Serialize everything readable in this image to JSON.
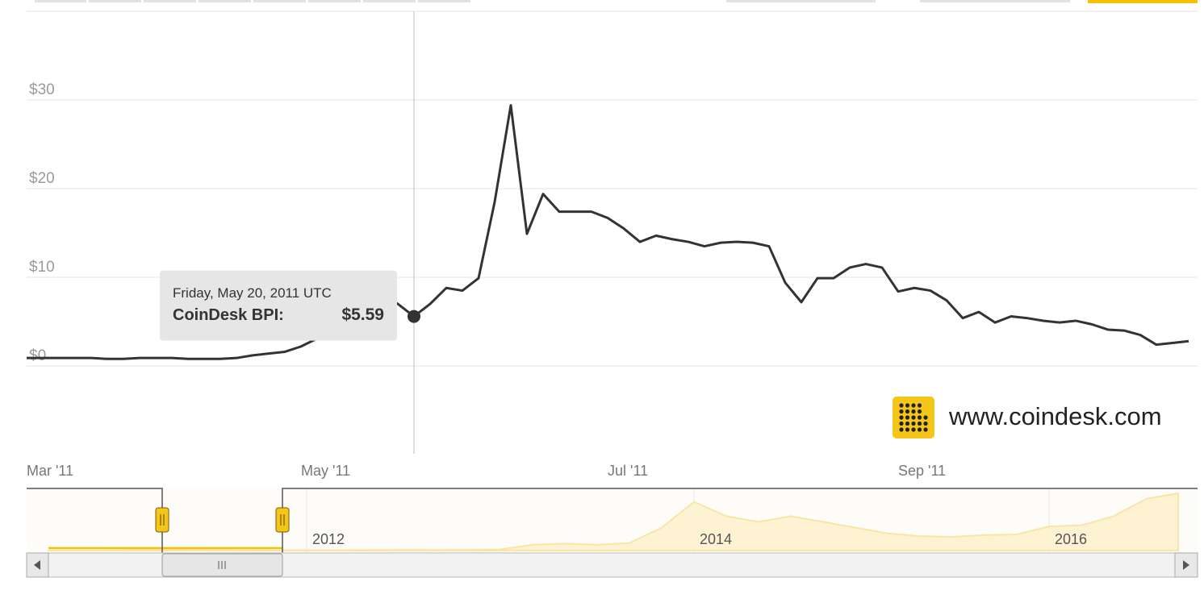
{
  "chart_data": [
    {
      "type": "line",
      "categories": [
        "Mar '11",
        null,
        null,
        null,
        null,
        null,
        null,
        null,
        null,
        null,
        null,
        null,
        null,
        null,
        null,
        null,
        null,
        "May '11",
        null,
        null,
        null,
        null,
        null,
        null,
        null,
        null,
        null,
        null,
        null,
        null,
        null,
        null,
        null,
        null,
        null,
        null,
        "Jul '11",
        null,
        null,
        null,
        null,
        null,
        null,
        null,
        null,
        null,
        null,
        null,
        null,
        null,
        null,
        null,
        null,
        null,
        "Sep '11",
        null,
        null,
        null,
        null,
        null,
        null,
        null,
        null,
        null,
        null,
        null,
        null,
        null,
        null,
        null,
        null,
        null,
        null
      ],
      "values": [
        0.9,
        0.9,
        0.9,
        0.9,
        0.9,
        0.8,
        0.8,
        0.9,
        0.9,
        0.9,
        0.8,
        0.8,
        0.8,
        0.9,
        1.2,
        1.4,
        1.6,
        2.2,
        3.1,
        4.0,
        6.5,
        7.5,
        8.0,
        7.0,
        5.59,
        7.0,
        8.8,
        8.5,
        9.9,
        18.5,
        29.4,
        14.9,
        19.4,
        17.4,
        17.4,
        17.4,
        16.7,
        15.5,
        14.0,
        14.7,
        14.3,
        14.0,
        13.5,
        13.9,
        14.0,
        13.9,
        13.5,
        9.4,
        7.2,
        9.9,
        9.9,
        11.1,
        11.5,
        11.1,
        8.4,
        8.8,
        8.5,
        7.4,
        5.4,
        6.1,
        4.9,
        5.6,
        5.4,
        5.1,
        4.9,
        5.1,
        4.7,
        4.1,
        4.0,
        3.5,
        2.4,
        2.6,
        2.8
      ],
      "color": "#333333",
      "ylim": [
        -9.9,
        40
      ],
      "yticks": [
        {
          "value": 0,
          "label": "$0"
        },
        {
          "value": 10,
          "label": "$10"
        },
        {
          "value": 20,
          "label": "$20"
        },
        {
          "value": 30,
          "label": "$30"
        }
      ],
      "grid": true,
      "tooltip": {
        "date": "Friday, May 20, 2011 UTC",
        "label": "CoinDesk BPI:",
        "value": 5.59,
        "value_label": "$5.59"
      }
    },
    {
      "type": "area",
      "categories": [
        null,
        null,
        null,
        null,
        null,
        null,
        null,
        null,
        "2012",
        null,
        null,
        null,
        null,
        null,
        null,
        null,
        null,
        null,
        null,
        null,
        "2014",
        null,
        null,
        null,
        null,
        null,
        null,
        null,
        null,
        null,
        null,
        "2016",
        null,
        null,
        null,
        null
      ],
      "values": [
        0.1,
        0.3,
        1,
        10,
        15,
        10,
        5,
        4,
        5,
        6,
        9,
        12,
        10,
        13,
        20,
        100,
        120,
        100,
        130,
        400,
        850,
        600,
        500,
        600,
        500,
        400,
        300,
        250,
        240,
        270,
        280,
        420,
        440,
        600,
        900,
        1000
      ],
      "color": "#f7e6a6",
      "grid": true
    }
  ],
  "watermark": "www.coindesk.com"
}
